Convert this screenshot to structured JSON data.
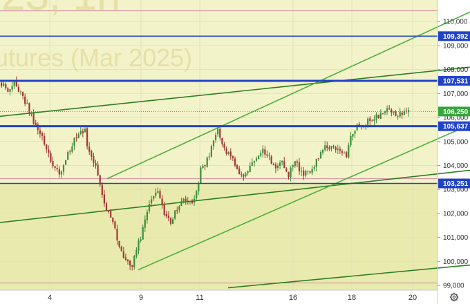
{
  "watermark": {
    "line1": "23, 1h",
    "line2": "utures (Mar 2025)"
  },
  "colors": {
    "plot_bg": "#f3f3c9",
    "lower_bg": "#e8ebad",
    "axis_bg": "#ffffff",
    "grid": "#e2e2bd",
    "up": "#3c8c3c",
    "down": "#a33434",
    "level": "#2143c9",
    "trend_light": "#4caf3c",
    "trend_dark": "#2e7d22",
    "pink": "#d48aa0",
    "price_tag": "#36a53a"
  },
  "chart_data": {
    "type": "candlestick",
    "x_ticks": [
      "4",
      "9",
      "11",
      "16",
      "18",
      "20"
    ],
    "y_ticks": [
      "110,000",
      "109,000",
      "108,000",
      "107,000",
      "106,000",
      "105,000",
      "104,000",
      "103,000",
      "102,000",
      "101,000",
      "100,000",
      "99,000"
    ],
    "ylim": [
      98800,
      110900
    ],
    "current_price": {
      "value": 106250,
      "label": "106,250"
    },
    "levels": [
      {
        "value": 109392,
        "label": "109,392"
      },
      {
        "value": 107531,
        "label": "107,531"
      },
      {
        "value": 105637,
        "label": "105,637"
      },
      {
        "value": 103251,
        "label": "103,251"
      }
    ],
    "close_path": [
      [
        0,
        107350
      ],
      [
        3,
        107200
      ],
      [
        6,
        107400
      ],
      [
        9,
        107050
      ],
      [
        12,
        106500
      ],
      [
        15,
        105800
      ],
      [
        18,
        105300
      ],
      [
        21,
        104700
      ],
      [
        24,
        104000
      ],
      [
        27,
        103700
      ],
      [
        30,
        104200
      ],
      [
        33,
        104900
      ],
      [
        36,
        105300
      ],
      [
        39,
        105550
      ],
      [
        40,
        104700
      ],
      [
        43,
        104200
      ],
      [
        46,
        103300
      ],
      [
        48,
        102300
      ],
      [
        51,
        101800
      ],
      [
        55,
        100700
      ],
      [
        58,
        100000
      ],
      [
        61,
        99800
      ],
      [
        63,
        100500
      ],
      [
        66,
        101300
      ],
      [
        68,
        102100
      ],
      [
        71,
        102800
      ],
      [
        73,
        103000
      ],
      [
        76,
        102000
      ],
      [
        79,
        101600
      ],
      [
        82,
        102200
      ],
      [
        85,
        102600
      ],
      [
        88,
        102400
      ],
      [
        91,
        102800
      ],
      [
        93,
        103900
      ],
      [
        96,
        104200
      ],
      [
        99,
        105100
      ],
      [
        101,
        105550
      ],
      [
        103,
        105000
      ],
      [
        105,
        104600
      ],
      [
        108,
        104200
      ],
      [
        111,
        103700
      ],
      [
        114,
        103600
      ],
      [
        117,
        104200
      ],
      [
        120,
        104500
      ],
      [
        122,
        104650
      ],
      [
        125,
        104300
      ],
      [
        128,
        103900
      ],
      [
        131,
        104100
      ],
      [
        134,
        103650
      ],
      [
        137,
        104200
      ],
      [
        140,
        103700
      ],
      [
        143,
        103700
      ],
      [
        146,
        104050
      ],
      [
        149,
        104600
      ],
      [
        152,
        104800
      ],
      [
        155,
        104800
      ],
      [
        158,
        104600
      ],
      [
        161,
        104400
      ],
      [
        163,
        105200
      ],
      [
        166,
        105600
      ],
      [
        169,
        105700
      ],
      [
        172,
        105900
      ],
      [
        175,
        106050
      ],
      [
        178,
        106200
      ],
      [
        181,
        106300
      ],
      [
        184,
        106100
      ],
      [
        187,
        106200
      ],
      [
        190,
        106250
      ]
    ],
    "trend_lines": [
      {
        "x1": 0,
        "y1": 106050,
        "x2": 680,
        "y2": 108100,
        "tone": "dark"
      },
      {
        "x1": 0,
        "y1": 101620,
        "x2": 680,
        "y2": 103800,
        "tone": "dark"
      },
      {
        "x1": 330,
        "y1": 98900,
        "x2": 680,
        "y2": 99850,
        "tone": "dark"
      },
      {
        "x1": 155,
        "y1": 103450,
        "x2": 680,
        "y2": 110400,
        "tone": "light"
      },
      {
        "x1": 200,
        "y1": 99650,
        "x2": 680,
        "y2": 105700,
        "tone": "light"
      }
    ]
  }
}
